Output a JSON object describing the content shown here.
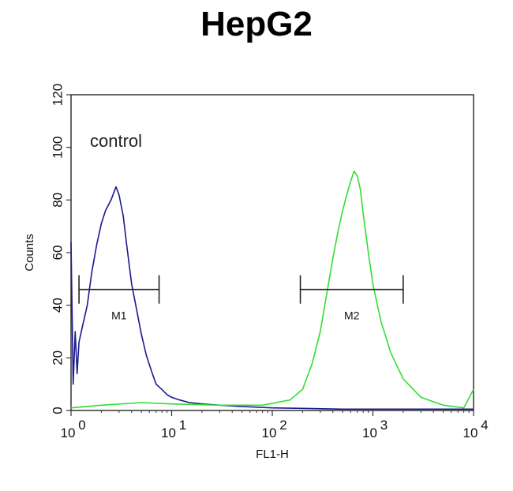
{
  "chart_data": {
    "type": "line",
    "title": "HepG2",
    "xlabel": "FL1-H",
    "ylabel": "Counts",
    "xscale": "log",
    "xlim": [
      1,
      10000
    ],
    "ylim": [
      0,
      120
    ],
    "x_ticks": [
      {
        "value": 1,
        "base": "10",
        "exp": "0"
      },
      {
        "value": 10,
        "base": "10",
        "exp": "1"
      },
      {
        "value": 100,
        "base": "10",
        "exp": "2"
      },
      {
        "value": 1000,
        "base": "10",
        "exp": "3"
      },
      {
        "value": 10000,
        "base": "10",
        "exp": "4"
      }
    ],
    "y_ticks": [
      0,
      20,
      40,
      60,
      80,
      100,
      120
    ],
    "annotation": "control",
    "gates": [
      {
        "label": "M1",
        "x_start": 1.2,
        "x_end": 7.5,
        "y": 46
      },
      {
        "label": "M2",
        "x_start": 190,
        "x_end": 2000,
        "y": 46
      }
    ],
    "series": [
      {
        "color": "#1a1a8c",
        "x": [
          1.0,
          1.05,
          1.1,
          1.15,
          1.2,
          1.3,
          1.45,
          1.6,
          1.8,
          2.0,
          2.2,
          2.5,
          2.8,
          3.0,
          3.3,
          3.6,
          4.0,
          4.5,
          5.0,
          5.6,
          6.3,
          7.0,
          8.0,
          9.0,
          10,
          12,
          15,
          20,
          30,
          50,
          100,
          200,
          500,
          1000,
          3000,
          10000
        ],
        "y": [
          64,
          10,
          30,
          14,
          26,
          32,
          40,
          52,
          63,
          71,
          76,
          80,
          85,
          82,
          74,
          62,
          48,
          38,
          29,
          21,
          15,
          10,
          8,
          6,
          5,
          4,
          3,
          2.5,
          2,
          1.5,
          1,
          0.8,
          0.5,
          0.5,
          0.5,
          0.5
        ]
      },
      {
        "color": "#33dd33",
        "x": [
          1.0,
          2.0,
          5.0,
          10,
          30,
          80,
          150,
          200,
          250,
          300,
          350,
          400,
          450,
          500,
          550,
          600,
          650,
          700,
          750,
          800,
          900,
          1000,
          1200,
          1500,
          2000,
          3000,
          5000,
          8000,
          10000
        ],
        "y": [
          1,
          2,
          3,
          2.5,
          2,
          2,
          4,
          8,
          18,
          30,
          45,
          58,
          68,
          76,
          82,
          87,
          91,
          89,
          84,
          75,
          60,
          48,
          34,
          22,
          12,
          5,
          2,
          1,
          8
        ]
      }
    ]
  }
}
